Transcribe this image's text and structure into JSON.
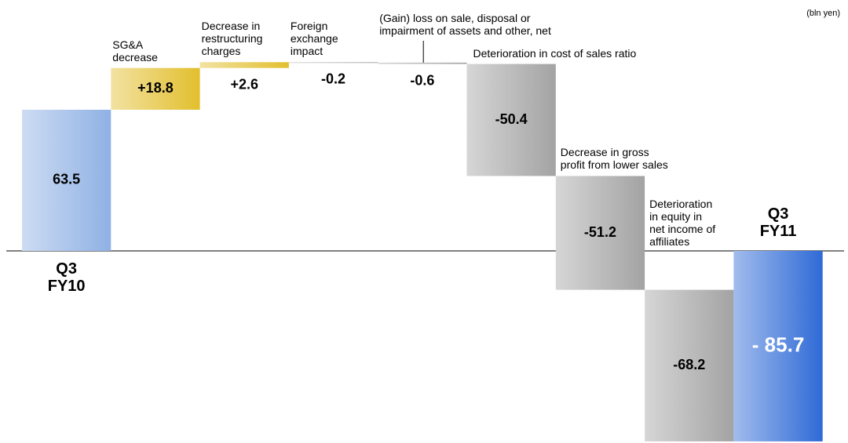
{
  "chart_data": {
    "type": "waterfall",
    "unit_label": "(bln yen)",
    "categories": [
      "Q3\nFY10",
      "SG&A\ndecrease",
      "Decrease in\nrestructuring\ncharges",
      "Foreign\nexchange\nimpact",
      "(Gain) loss on sale, disposal or\nimpairment of assets and other, net",
      "Deterioration in cost of sales ratio",
      "Decrease in gross\nprofit from lower sales",
      "Deterioration\nin equity in\nnet income of\naffiliates",
      "Q3\nFY11"
    ],
    "values": [
      63.5,
      18.8,
      2.6,
      -0.2,
      -0.6,
      -50.4,
      -51.2,
      -68.2,
      -85.7
    ],
    "value_labels": [
      "63.5",
      "+18.8",
      "+2.6",
      "-0.2",
      "-0.6",
      "-50.4",
      "-51.2",
      "-68.2",
      "- 85.7"
    ],
    "kinds": [
      "start",
      "step",
      "step",
      "step",
      "step",
      "step",
      "step",
      "step",
      "total"
    ],
    "colors": {
      "start": "#8fb1e4",
      "increase": "#e2bf2e",
      "decrease": "#a3a3a3",
      "total": "#2f6ad6"
    }
  }
}
